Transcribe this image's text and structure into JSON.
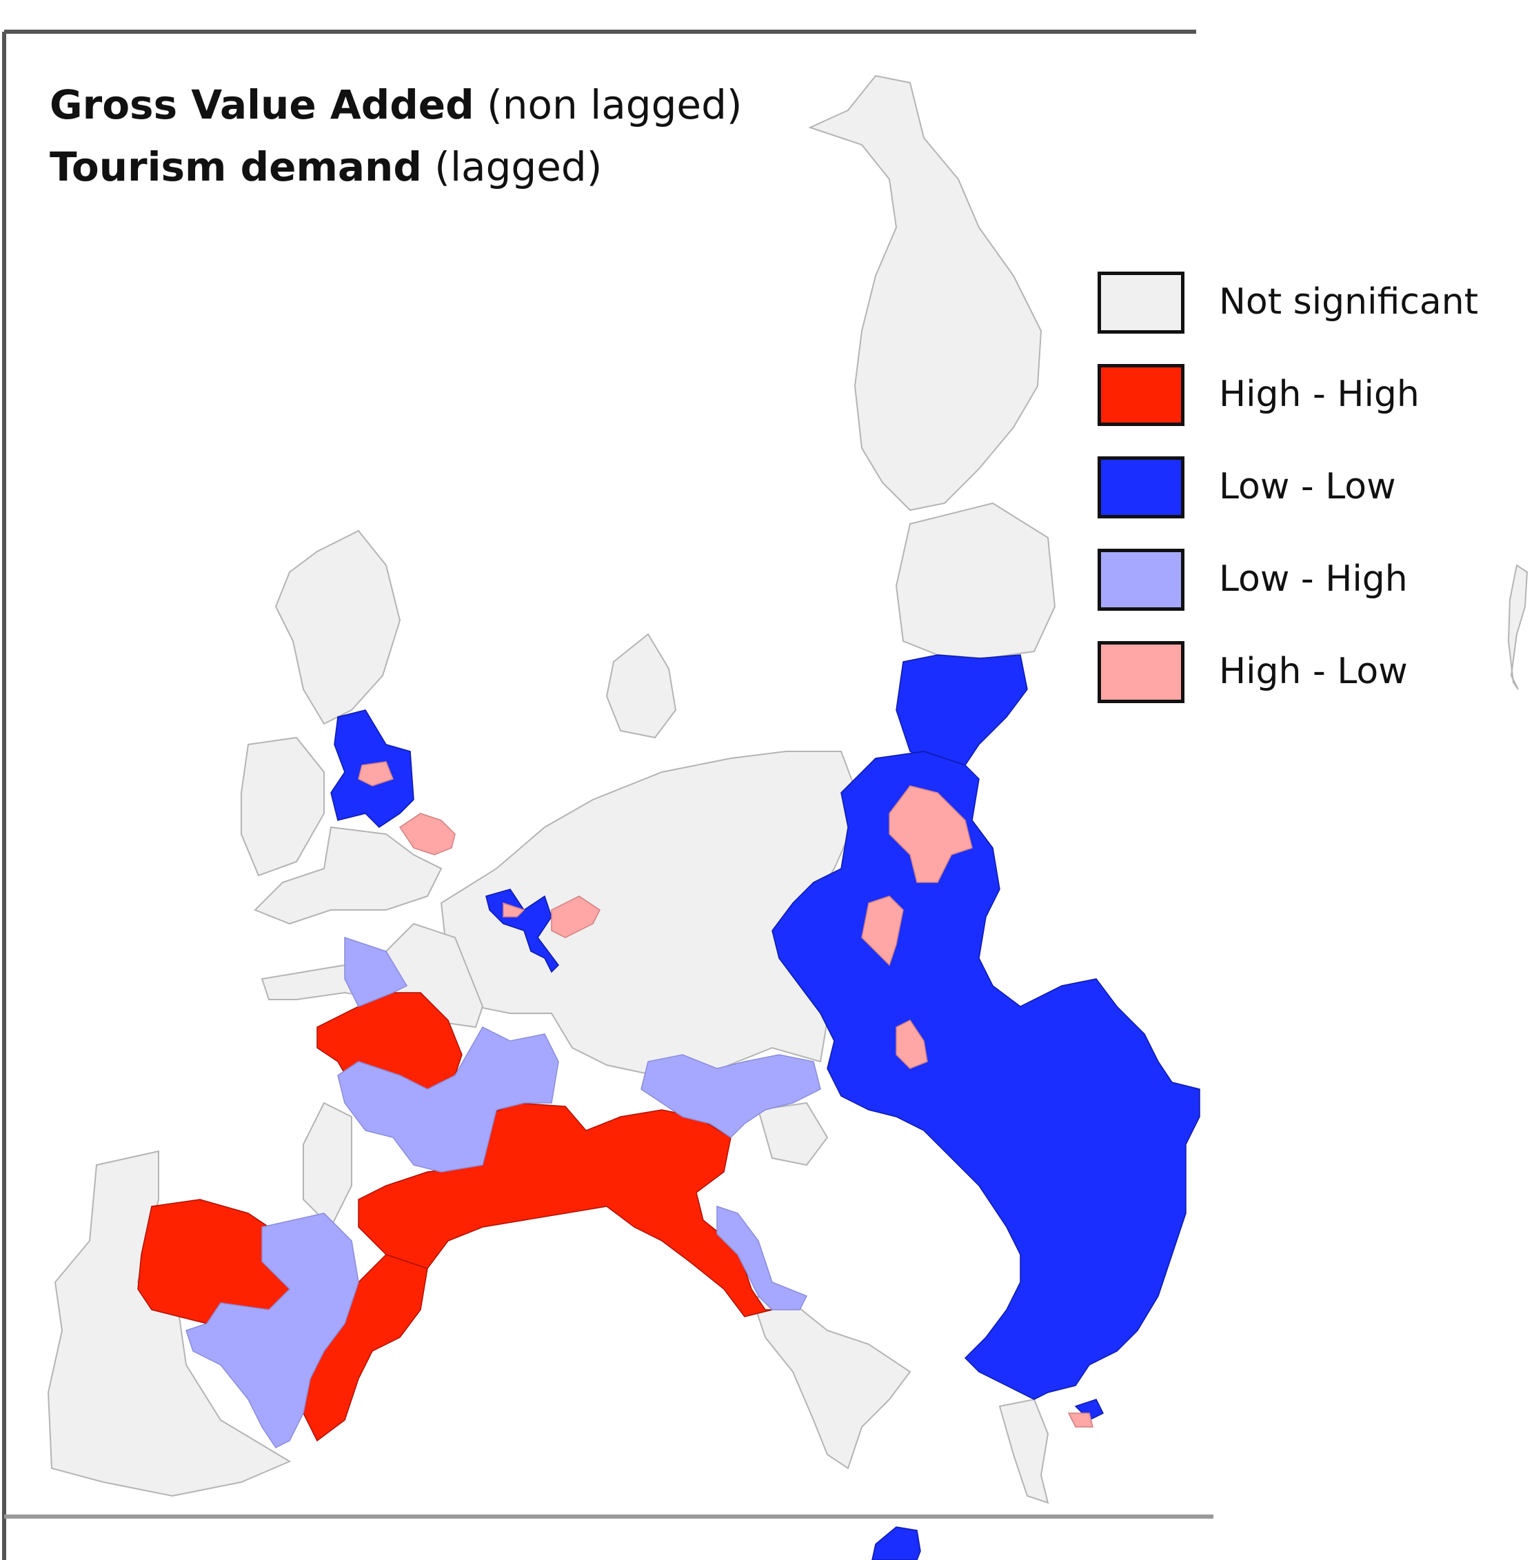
{
  "title": {
    "line1_bold": "Gross Value Added",
    "line1_rest": " (non lagged)",
    "line2_bold": "Tourism demand",
    "line2_rest": " (lagged)"
  },
  "legend": [
    {
      "label": "Not significant",
      "color": "#f0f0f0"
    },
    {
      "label": "High - High",
      "color": "#ff2200"
    },
    {
      "label": "Low - Low",
      "color": "#1a2eff"
    },
    {
      "label": "Low - High",
      "color": "#a6a8ff"
    },
    {
      "label": "High - Low",
      "color": "#ffa6a6"
    }
  ],
  "colors": {
    "land_border": "#b4b4b4",
    "frame": "#555555"
  }
}
